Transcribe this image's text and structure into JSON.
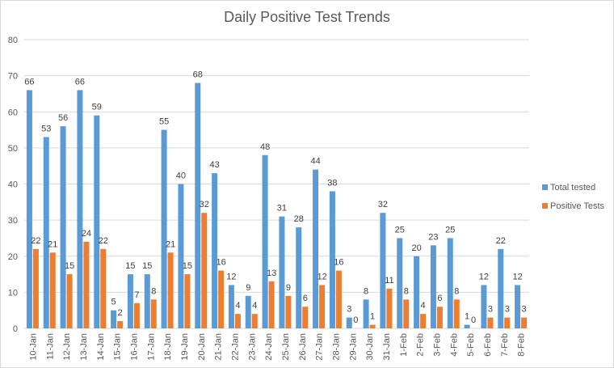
{
  "chart_data": {
    "type": "bar",
    "title": "Daily Positive Test Trends",
    "categories": [
      "10-Jan",
      "11-Jan",
      "12-Jan",
      "13-Jan",
      "14-Jan",
      "15-Jan",
      "16-Jan",
      "17-Jan",
      "18-Jan",
      "19-Jan",
      "20-Jan",
      "21-Jan",
      "22-Jan",
      "23-Jan",
      "24-Jan",
      "25-Jan",
      "26-Jan",
      "27-Jan",
      "28-Jan",
      "29-Jan",
      "30-Jan",
      "31-Jan",
      "1-Feb",
      "2-Feb",
      "3-Feb",
      "4-Feb",
      "5-Feb",
      "6-Feb",
      "7-Feb",
      "8-Feb"
    ],
    "series": [
      {
        "name": "Total tested",
        "color": "#5b9bd5",
        "values": [
          66,
          53,
          56,
          66,
          59,
          5,
          15,
          15,
          55,
          40,
          68,
          43,
          12,
          9,
          48,
          31,
          28,
          44,
          38,
          3,
          8,
          32,
          25,
          20,
          23,
          25,
          1,
          12,
          22,
          12
        ]
      },
      {
        "name": "Positive Tests",
        "color": "#ed7d31",
        "values": [
          22,
          21,
          15,
          24,
          22,
          2,
          7,
          8,
          21,
          15,
          32,
          16,
          4,
          4,
          13,
          9,
          6,
          12,
          16,
          0,
          1,
          11,
          8,
          4,
          6,
          8,
          0,
          3,
          3,
          3
        ]
      }
    ],
    "ylim": [
      0,
      80
    ],
    "yticks": [
      0,
      10,
      20,
      30,
      40,
      50,
      60,
      70,
      80
    ],
    "grid": true,
    "legend_position": "right",
    "xlabel": "",
    "ylabel": ""
  }
}
